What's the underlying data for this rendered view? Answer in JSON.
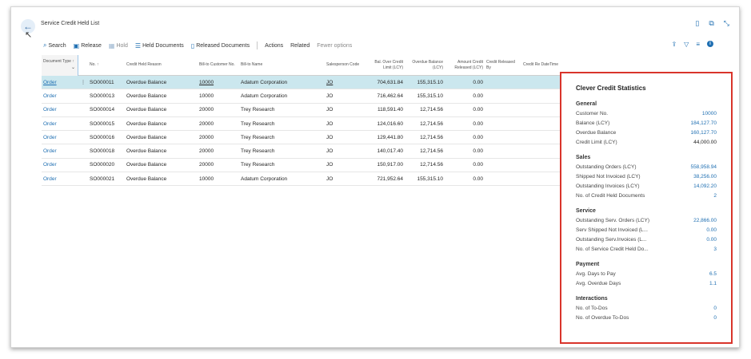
{
  "page": {
    "title": "Service Credit Held List"
  },
  "actions": {
    "search": "Search",
    "release": "Release",
    "hold": "Hold",
    "held_documents": "Held Documents",
    "released_documents": "Released Documents",
    "actions": "Actions",
    "related": "Related",
    "fewer_options": "Fewer options"
  },
  "columns": {
    "document_type": "Document Type ↑",
    "no": "No. ↑",
    "reason": "Credit Held Reason",
    "bill_to_no": "Bill-to Customer No.",
    "bill_to_name": "Bill-to Name",
    "salesperson": "Salesperson Code",
    "bal_over": "Bal. Over Credit Limit (LCY)",
    "overdue": "Overdue Balance (LCY)",
    "amount_released": "Amount Credit Released (LCY)",
    "released_by": "Credit Released By",
    "released_datetime": "Credit Re DateTime"
  },
  "rows": [
    {
      "type": "Order",
      "no": "SO000011",
      "reason": "Overdue Balance",
      "cust": "10000",
      "name": "Adatum Corporation",
      "sales": "JO",
      "bal": "704,631.84",
      "over": "155,315.10",
      "amt": "0.00"
    },
    {
      "type": "Order",
      "no": "SO000013",
      "reason": "Overdue Balance",
      "cust": "10000",
      "name": "Adatum Corporation",
      "sales": "JO",
      "bal": "716,462.64",
      "over": "155,315.10",
      "amt": "0.00"
    },
    {
      "type": "Order",
      "no": "SO000014",
      "reason": "Overdue Balance",
      "cust": "20000",
      "name": "Trey Research",
      "sales": "JO",
      "bal": "118,591.40",
      "over": "12,714.56",
      "amt": "0.00"
    },
    {
      "type": "Order",
      "no": "SO000015",
      "reason": "Overdue Balance",
      "cust": "20000",
      "name": "Trey Research",
      "sales": "JO",
      "bal": "124,016.60",
      "over": "12,714.56",
      "amt": "0.00"
    },
    {
      "type": "Order",
      "no": "SO000016",
      "reason": "Overdue Balance",
      "cust": "20000",
      "name": "Trey Research",
      "sales": "JO",
      "bal": "129,441.80",
      "over": "12,714.56",
      "amt": "0.00"
    },
    {
      "type": "Order",
      "no": "SO000018",
      "reason": "Overdue Balance",
      "cust": "20000",
      "name": "Trey Research",
      "sales": "JO",
      "bal": "140,017.40",
      "over": "12,714.56",
      "amt": "0.00"
    },
    {
      "type": "Order",
      "no": "SO000020",
      "reason": "Overdue Balance",
      "cust": "20000",
      "name": "Trey Research",
      "sales": "JO",
      "bal": "150,917.00",
      "over": "12,714.56",
      "amt": "0.00"
    },
    {
      "type": "Order",
      "no": "SO000021",
      "reason": "Overdue Balance",
      "cust": "10000",
      "name": "Adatum Corporation",
      "sales": "JO",
      "bal": "721,952.64",
      "over": "155,315.10",
      "amt": "0.00"
    }
  ],
  "factbox": {
    "title": "Clever Credit Statistics",
    "general": {
      "heading": "General",
      "items": [
        {
          "label": "Customer No.",
          "value": "10000"
        },
        {
          "label": "Balance (LCY)",
          "value": "184,127.70"
        },
        {
          "label": "Overdue Balance",
          "value": "160,127.70"
        },
        {
          "label": "Credit Limit (LCY)",
          "value": "44,000.00"
        }
      ]
    },
    "sales": {
      "heading": "Sales",
      "items": [
        {
          "label": "Outstanding Orders (LCY)",
          "value": "558,958.94"
        },
        {
          "label": "Shipped Not Invoiced (LCY)",
          "value": "38,256.00"
        },
        {
          "label": "Outstanding Invoices (LCY)",
          "value": "14,092.20"
        },
        {
          "label": "No. of Credit Held Documents",
          "value": "2"
        }
      ]
    },
    "service": {
      "heading": "Service",
      "items": [
        {
          "label": "Outstanding Serv. Orders (LCY)",
          "value": "22,866.00"
        },
        {
          "label": "Serv Shipped Not Invoiced (L...",
          "value": "0.00"
        },
        {
          "label": "Outstanding Serv.Invoices (L...",
          "value": "0.00"
        },
        {
          "label": "No. of Service Credit Held Do...",
          "value": "3"
        }
      ]
    },
    "payment": {
      "heading": "Payment",
      "items": [
        {
          "label": "Avg. Days to Pay",
          "value": "6.5"
        },
        {
          "label": "Avg. Overdue Days",
          "value": "1.1"
        }
      ]
    },
    "interactions": {
      "heading": "Interactions",
      "items": [
        {
          "label": "No. of To-Dos",
          "value": "0"
        },
        {
          "label": "No. of Overdue To-Dos",
          "value": "0"
        }
      ]
    }
  }
}
